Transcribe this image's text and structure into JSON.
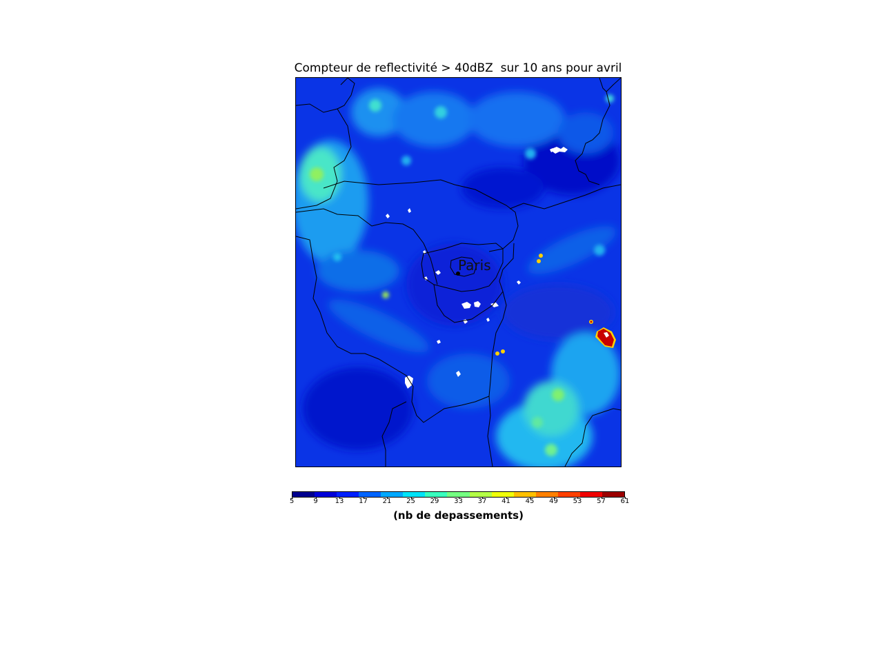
{
  "map": {
    "title": "Compteur de reflectivité > 40dBZ  sur 10 ans pour avril",
    "city_label": "Paris"
  },
  "colorbar": {
    "label": "(nb de depassements)",
    "ticks": [
      "5",
      "9",
      "13",
      "17",
      "21",
      "25",
      "29",
      "33",
      "37",
      "41",
      "45",
      "49",
      "53",
      "57",
      "61"
    ],
    "colors": [
      "#00008f",
      "#0000d8",
      "#0020ff",
      "#0064ff",
      "#00a8ff",
      "#00e4f8",
      "#38ffbe",
      "#74ff82",
      "#b4ff46",
      "#f0ff0a",
      "#ffc000",
      "#ff8000",
      "#ff4000",
      "#f00000",
      "#9c0000"
    ]
  },
  "colors": {
    "background": "#0a2fe0",
    "hotspot": "#c80000",
    "border_lines": "#000000"
  }
}
